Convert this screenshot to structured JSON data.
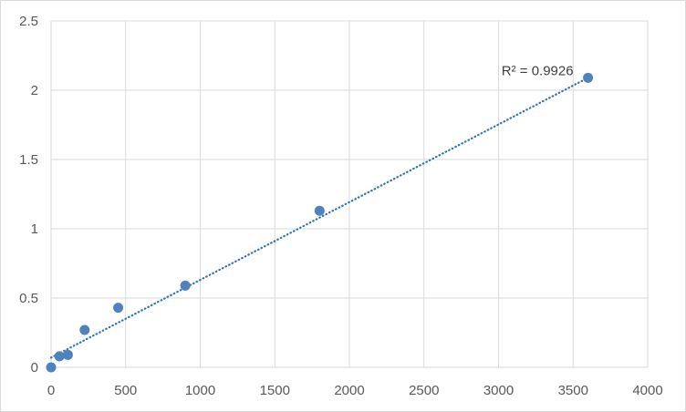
{
  "chart_data": {
    "type": "scatter",
    "title": "",
    "xlabel": "",
    "ylabel": "",
    "xlim": [
      0,
      4000
    ],
    "ylim": [
      0,
      2.5
    ],
    "x_ticks": [
      0,
      500,
      1000,
      1500,
      2000,
      2500,
      3000,
      3500,
      4000
    ],
    "y_ticks": [
      0,
      0.5,
      1,
      1.5,
      2,
      2.5
    ],
    "x_tick_labels": [
      "0",
      "500",
      "1000",
      "1500",
      "2000",
      "2500",
      "3000",
      "3500",
      "4000"
    ],
    "y_tick_labels": [
      "0",
      "0.5",
      "1",
      "1.5",
      "2",
      "2.5"
    ],
    "grid": true,
    "legend": "none",
    "series": [
      {
        "points": [
          {
            "x": 0,
            "y": 0.0
          },
          {
            "x": 56.25,
            "y": 0.08
          },
          {
            "x": 112.5,
            "y": 0.09
          },
          {
            "x": 225,
            "y": 0.27
          },
          {
            "x": 450,
            "y": 0.43
          },
          {
            "x": 900,
            "y": 0.59
          },
          {
            "x": 1800,
            "y": 1.13
          },
          {
            "x": 3600,
            "y": 2.09
          }
        ],
        "color": "#4f81bd"
      }
    ],
    "trendline": {
      "type": "linear",
      "style": "dotted",
      "color": "#2e75b6",
      "x_range": [
        0,
        3600
      ],
      "y_start": 0.07,
      "y_end": 2.09,
      "r2_label": "R² = 0.9926"
    }
  },
  "colors": {
    "gridline": "#d9d9d9",
    "marker": "#4f81bd",
    "trendline": "#2e75b6",
    "tick_text": "#595959"
  }
}
